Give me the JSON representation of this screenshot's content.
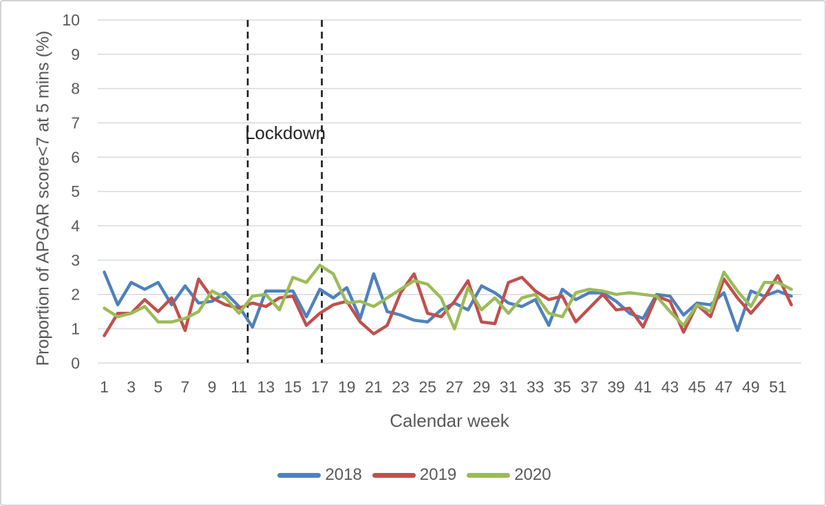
{
  "chart_data": {
    "type": "line",
    "title": "",
    "xlabel": "Calendar week",
    "ylabel": "Proportion of APGAR score<7 at 5 mins (%)",
    "x": [
      1,
      2,
      3,
      4,
      5,
      6,
      7,
      8,
      9,
      10,
      11,
      12,
      13,
      14,
      15,
      16,
      17,
      18,
      19,
      20,
      21,
      22,
      23,
      24,
      25,
      26,
      27,
      28,
      29,
      30,
      31,
      32,
      33,
      34,
      35,
      36,
      37,
      38,
      39,
      40,
      41,
      42,
      43,
      44,
      45,
      46,
      47,
      48,
      49,
      50,
      51,
      52
    ],
    "x_tick_labels": [
      "1",
      "3",
      "5",
      "7",
      "9",
      "11",
      "13",
      "15",
      "17",
      "19",
      "21",
      "23",
      "25",
      "27",
      "29",
      "31",
      "33",
      "35",
      "37",
      "39",
      "41",
      "43",
      "45",
      "47",
      "49",
      "51"
    ],
    "x_tick_weeks": [
      1,
      3,
      5,
      7,
      9,
      11,
      13,
      15,
      17,
      19,
      21,
      23,
      25,
      27,
      29,
      31,
      33,
      35,
      37,
      39,
      41,
      43,
      45,
      47,
      49,
      51
    ],
    "ylim": [
      0,
      10
    ],
    "y_ticks": [
      "0",
      "1",
      "2",
      "3",
      "4",
      "5",
      "6",
      "7",
      "8",
      "9",
      "10"
    ],
    "grid": true,
    "legend_position": "bottom",
    "gridline_color": "#d9d9d9",
    "tick_label_color": "#595959",
    "annotations": {
      "lockdown": {
        "label": "Lockdown",
        "week_start": 11.65,
        "week_end": 17.15,
        "line_style": "dashed",
        "line_color": "#1a1a1a"
      }
    },
    "series": [
      {
        "name": "2018",
        "color": "#4F81BD",
        "values": [
          2.65,
          1.7,
          2.35,
          2.15,
          2.35,
          1.7,
          2.25,
          1.75,
          1.8,
          2.05,
          1.65,
          1.05,
          2.1,
          2.1,
          2.1,
          1.35,
          2.15,
          1.9,
          2.2,
          1.3,
          2.6,
          1.5,
          1.4,
          1.25,
          1.2,
          1.55,
          1.75,
          1.55,
          2.25,
          2.05,
          1.75,
          1.65,
          1.85,
          1.1,
          2.15,
          1.85,
          2.05,
          2.05,
          1.8,
          1.45,
          1.3,
          2.0,
          1.95,
          1.4,
          1.75,
          1.7,
          2.05,
          0.95,
          2.1,
          1.95,
          2.1,
          1.95
        ]
      },
      {
        "name": "2019",
        "color": "#C0504D",
        "values": [
          0.8,
          1.45,
          1.45,
          1.85,
          1.5,
          1.9,
          0.95,
          2.45,
          1.9,
          1.7,
          1.6,
          1.75,
          1.65,
          1.9,
          1.95,
          1.1,
          1.45,
          1.7,
          1.8,
          1.2,
          0.85,
          1.1,
          2.05,
          2.6,
          1.45,
          1.35,
          1.8,
          2.4,
          1.2,
          1.15,
          2.35,
          2.5,
          2.1,
          1.85,
          1.95,
          1.2,
          1.6,
          2.0,
          1.55,
          1.6,
          1.05,
          1.95,
          1.8,
          0.9,
          1.7,
          1.35,
          2.45,
          1.9,
          1.45,
          1.9,
          2.55,
          1.7
        ]
      },
      {
        "name": "2020",
        "color": "#9BBB59",
        "values": [
          1.6,
          1.35,
          1.45,
          1.65,
          1.2,
          1.2,
          1.3,
          1.5,
          2.1,
          1.9,
          1.45,
          1.95,
          2.0,
          1.55,
          2.5,
          2.35,
          2.85,
          2.6,
          1.75,
          1.8,
          1.65,
          1.9,
          2.15,
          2.4,
          2.3,
          1.9,
          1.0,
          2.2,
          1.55,
          1.9,
          1.45,
          1.9,
          2.0,
          1.45,
          1.35,
          2.05,
          2.15,
          2.1,
          2.0,
          2.05,
          2.0,
          1.95,
          1.5,
          1.1,
          1.7,
          1.5,
          2.65,
          2.1,
          1.65,
          2.35,
          2.35,
          2.15
        ]
      }
    ]
  }
}
